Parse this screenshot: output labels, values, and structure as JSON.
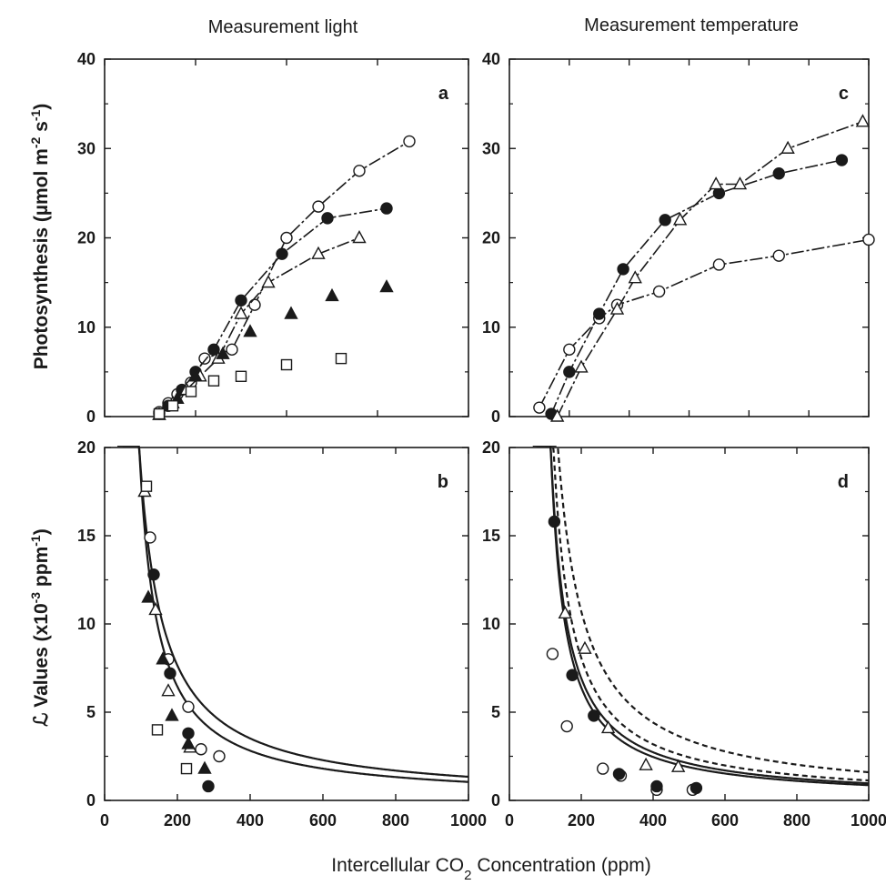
{
  "figure": {
    "col_titles": [
      "Measurement light",
      "Measurement temperature"
    ],
    "ylabel_top": "Photosynthesis (µmol m-2 s-1)",
    "ylabel_bottom": "ℒ Values (x10-3 ppm-1)",
    "xlabel": "Intercellular CO2 Concentration (ppm)"
  },
  "chart_data": [
    {
      "id": "a",
      "type": "scatter",
      "letter": "a",
      "xlim": [
        0,
        400
      ],
      "ylim": [
        0,
        40
      ],
      "xticks": [],
      "yticks": [
        0,
        10,
        20,
        30,
        40
      ],
      "series": [
        {
          "marker": "circle-open",
          "connect": true,
          "x": [
            60,
            70,
            80,
            95,
            110,
            140,
            165,
            200,
            235,
            280,
            335
          ],
          "y": [
            0.5,
            1.5,
            2.5,
            3.8,
            6.5,
            7.5,
            12.5,
            20,
            23.5,
            27.5,
            30.8
          ]
        },
        {
          "marker": "circle-filled",
          "connect": true,
          "x": [
            60,
            70,
            85,
            100,
            120,
            150,
            195,
            245,
            310
          ],
          "y": [
            0.3,
            1.2,
            3,
            5,
            7.5,
            13,
            18.2,
            22.2,
            23.3
          ]
        },
        {
          "marker": "triangle-open",
          "connect": true,
          "x": [
            60,
            75,
            90,
            105,
            125,
            150,
            180,
            235,
            280
          ],
          "y": [
            0.2,
            1.5,
            3,
            4.5,
            6.5,
            11.5,
            15,
            18.2,
            20
          ]
        },
        {
          "marker": "triangle-filled",
          "connect": false,
          "x": [
            60,
            80,
            100,
            130,
            160,
            205,
            250,
            310
          ],
          "y": [
            0.2,
            2,
            4.5,
            7,
            9.5,
            11.5,
            13.5,
            14.5
          ]
        },
        {
          "marker": "square-open",
          "connect": false,
          "x": [
            60,
            75,
            95,
            120,
            150,
            200,
            260
          ],
          "y": [
            0.3,
            1.2,
            2.8,
            4,
            4.5,
            5.8,
            6.5
          ]
        }
      ]
    },
    {
      "id": "c",
      "type": "scatter",
      "letter": "c",
      "xlim": [
        0,
        600
      ],
      "ylim": [
        0,
        40
      ],
      "xticks": [],
      "yticks": [
        0,
        10,
        20,
        30,
        40
      ],
      "series": [
        {
          "marker": "circle-open",
          "connect": true,
          "x": [
            50,
            100,
            150,
            180,
            250,
            350,
            450,
            600
          ],
          "y": [
            1,
            7.5,
            11,
            12.5,
            14,
            17,
            18,
            19.8
          ]
        },
        {
          "marker": "circle-filled",
          "connect": true,
          "x": [
            70,
            100,
            150,
            190,
            260,
            350,
            450,
            555
          ],
          "y": [
            0.3,
            5,
            11.5,
            16.5,
            22,
            25,
            27.2,
            28.7
          ]
        },
        {
          "marker": "triangle-open",
          "connect": true,
          "x": [
            80,
            120,
            180,
            210,
            285,
            345,
            385,
            465,
            590
          ],
          "y": [
            0,
            5.5,
            12,
            15.5,
            22,
            26,
            26,
            30,
            33
          ]
        }
      ]
    },
    {
      "id": "b",
      "type": "scatter",
      "letter": "b",
      "xlim": [
        0,
        1000
      ],
      "ylim": [
        0,
        20
      ],
      "xticks": [
        0,
        200,
        400,
        600,
        800,
        1000
      ],
      "yticks": [
        0,
        5,
        10,
        15,
        20
      ],
      "curves": [
        {
          "style": "solid",
          "a": 1300,
          "c0": 30
        },
        {
          "style": "solid",
          "a": 1000,
          "c0": 45
        }
      ],
      "series": [
        {
          "marker": "circle-open",
          "x": [
            125,
            175,
            230,
            265,
            315
          ],
          "y": [
            14.9,
            8,
            5.3,
            2.9,
            2.5
          ]
        },
        {
          "marker": "circle-filled",
          "x": [
            135,
            180,
            230,
            285
          ],
          "y": [
            12.8,
            7.2,
            3.8,
            0.8
          ]
        },
        {
          "marker": "triangle-open",
          "x": [
            110,
            140,
            175,
            235
          ],
          "y": [
            17.5,
            10.8,
            6.2,
            3.0
          ]
        },
        {
          "marker": "triangle-filled",
          "x": [
            120,
            160,
            185,
            230,
            275
          ],
          "y": [
            11.5,
            8.0,
            4.8,
            3.2,
            1.8
          ]
        },
        {
          "marker": "square-open",
          "x": [
            115,
            145,
            225
          ],
          "y": [
            17.8,
            4.0,
            1.8
          ]
        }
      ]
    },
    {
      "id": "d",
      "type": "scatter",
      "letter": "d",
      "xlim": [
        0,
        1000
      ],
      "ylim": [
        0,
        20
      ],
      "xticks": [
        0,
        200,
        400,
        600,
        800,
        1000
      ],
      "yticks": [
        0,
        5,
        10,
        15,
        20
      ],
      "curves": [
        {
          "style": "solid",
          "a": 900,
          "c0": 70
        },
        {
          "style": "solid",
          "a": 800,
          "c0": 75
        },
        {
          "style": "dashed",
          "a": 1050,
          "c0": 70
        },
        {
          "style": "dashed",
          "a": 1500,
          "c0": 60
        }
      ],
      "series": [
        {
          "marker": "circle-open",
          "x": [
            120,
            160,
            260,
            310,
            410,
            510
          ],
          "y": [
            8.3,
            4.2,
            1.8,
            1.4,
            0.6,
            0.6
          ]
        },
        {
          "marker": "circle-filled",
          "x": [
            125,
            175,
            235,
            305,
            410,
            520
          ],
          "y": [
            15.8,
            7.1,
            4.8,
            1.5,
            0.8,
            0.7
          ]
        },
        {
          "marker": "triangle-open",
          "x": [
            155,
            210,
            275,
            380,
            470
          ],
          "y": [
            10.6,
            8.6,
            4.1,
            2.0,
            1.9
          ]
        }
      ]
    }
  ]
}
